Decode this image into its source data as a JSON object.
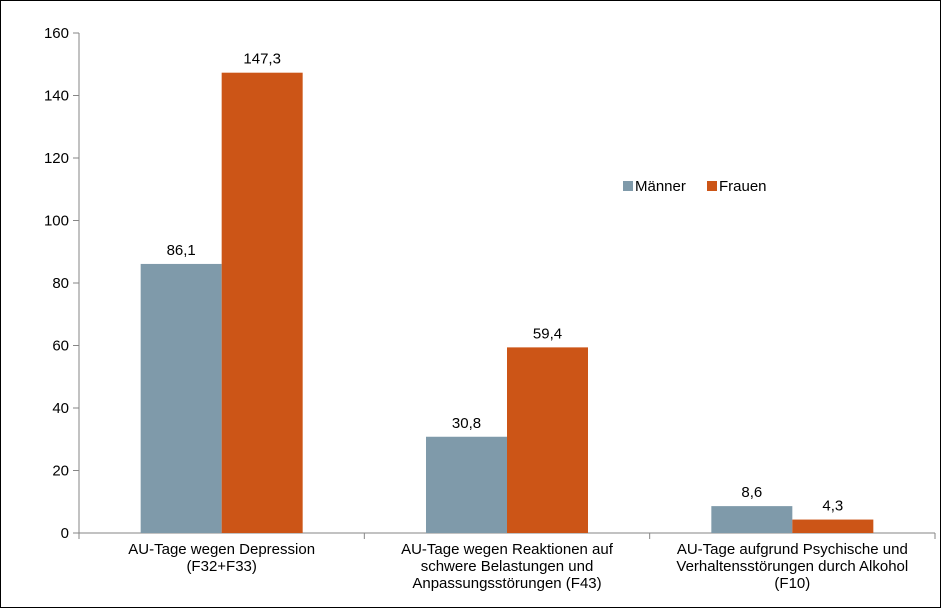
{
  "chart_data": {
    "type": "bar",
    "title": "",
    "xlabel": "",
    "ylabel": "",
    "ylim": [
      0,
      160
    ],
    "y_ticks": [
      "0",
      "20",
      "40",
      "60",
      "80",
      "100",
      "120",
      "140",
      "160"
    ],
    "grid": false,
    "legend_position": "right",
    "categories": [
      [
        "AU-Tage wegen Depression",
        "(F32+F33)"
      ],
      [
        "AU-Tage wegen Reaktionen auf",
        "schwere Belastungen und",
        "Anpassungsstörungen (F43)"
      ],
      [
        "AU-Tage aufgrund Psychische und",
        "Verhaltensstörungen durch Alkohol",
        "(F10)"
      ]
    ],
    "series": [
      {
        "name": "Männer",
        "color": "#7f9aaa",
        "values": [
          86.1,
          30.8,
          8.6
        ],
        "labels": [
          "86,1",
          "30,8",
          "8,6"
        ]
      },
      {
        "name": "Frauen",
        "color": "#cc5517",
        "values": [
          147.3,
          59.4,
          4.3
        ],
        "labels": [
          "147,3",
          "59,4",
          "4,3"
        ]
      }
    ]
  }
}
